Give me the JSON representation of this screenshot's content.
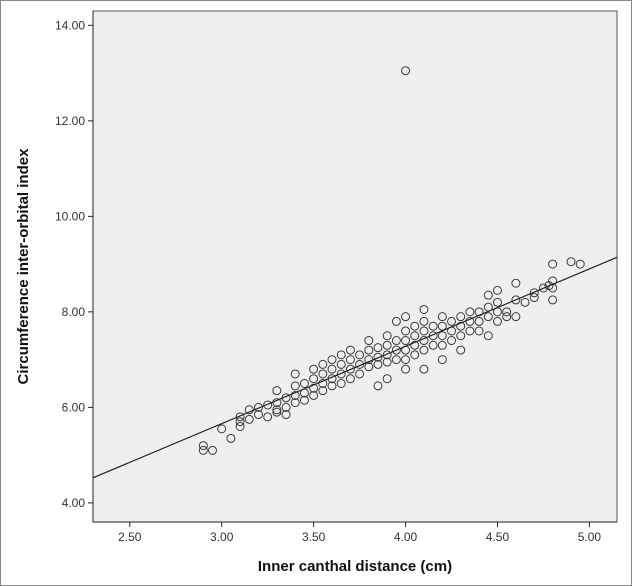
{
  "chart_data": {
    "type": "scatter",
    "xlabel": "Inner canthal distance (cm)",
    "ylabel": "Circumference inter-orbital index",
    "xlim": [
      2.3,
      5.15
    ],
    "ylim": [
      3.6,
      14.3
    ],
    "x_ticks": [
      "2.50",
      "3.00",
      "3.50",
      "4.00",
      "4.50",
      "5.00"
    ],
    "y_ticks": [
      "4.00",
      "6.00",
      "8.00",
      "10.00",
      "12.00",
      "14.00"
    ],
    "grid": false,
    "plot_background": "#efefef",
    "marker_color": "#3a3a3a",
    "line_color": "#222222",
    "fit_line": {
      "slope": 1.62,
      "intercept": 0.8
    },
    "points": [
      [
        2.9,
        5.2
      ],
      [
        2.9,
        5.1
      ],
      [
        2.95,
        5.1
      ],
      [
        3.0,
        5.55
      ],
      [
        3.05,
        5.35
      ],
      [
        3.1,
        5.6
      ],
      [
        3.1,
        5.7
      ],
      [
        3.1,
        5.8
      ],
      [
        3.15,
        5.95
      ],
      [
        3.15,
        5.75
      ],
      [
        3.2,
        5.85
      ],
      [
        3.2,
        6.0
      ],
      [
        3.25,
        5.8
      ],
      [
        3.25,
        6.05
      ],
      [
        3.3,
        5.9
      ],
      [
        3.3,
        6.1
      ],
      [
        3.3,
        6.35
      ],
      [
        3.3,
        5.95
      ],
      [
        3.35,
        6.0
      ],
      [
        3.35,
        6.2
      ],
      [
        3.35,
        5.85
      ],
      [
        3.4,
        6.25
      ],
      [
        3.4,
        6.45
      ],
      [
        3.4,
        6.1
      ],
      [
        3.4,
        6.7
      ],
      [
        3.45,
        6.3
      ],
      [
        3.45,
        6.5
      ],
      [
        3.45,
        6.15
      ],
      [
        3.5,
        6.4
      ],
      [
        3.5,
        6.6
      ],
      [
        3.5,
        6.8
      ],
      [
        3.5,
        6.25
      ],
      [
        3.55,
        6.5
      ],
      [
        3.55,
        6.7
      ],
      [
        3.55,
        6.35
      ],
      [
        3.55,
        6.9
      ],
      [
        3.6,
        6.6
      ],
      [
        3.6,
        6.8
      ],
      [
        3.6,
        6.45
      ],
      [
        3.6,
        7.0
      ],
      [
        3.65,
        6.7
      ],
      [
        3.65,
        6.5
      ],
      [
        3.65,
        6.9
      ],
      [
        3.65,
        7.1
      ],
      [
        3.7,
        6.8
      ],
      [
        3.7,
        7.0
      ],
      [
        3.7,
        6.6
      ],
      [
        3.7,
        7.2
      ],
      [
        3.75,
        6.9
      ],
      [
        3.75,
        7.1
      ],
      [
        3.75,
        6.7
      ],
      [
        3.8,
        7.0
      ],
      [
        3.8,
        7.2
      ],
      [
        3.8,
        6.85
      ],
      [
        3.8,
        7.4
      ],
      [
        3.85,
        7.05
      ],
      [
        3.85,
        7.25
      ],
      [
        3.85,
        6.9
      ],
      [
        3.85,
        6.45
      ],
      [
        3.9,
        7.1
      ],
      [
        3.9,
        7.3
      ],
      [
        3.9,
        6.95
      ],
      [
        3.9,
        7.5
      ],
      [
        3.9,
        6.6
      ],
      [
        3.95,
        7.2
      ],
      [
        3.95,
        7.4
      ],
      [
        3.95,
        7.0
      ],
      [
        3.95,
        7.8
      ],
      [
        4.0,
        7.2
      ],
      [
        4.0,
        7.4
      ],
      [
        4.0,
        7.0
      ],
      [
        4.0,
        7.6
      ],
      [
        4.0,
        6.8
      ],
      [
        4.0,
        7.9
      ],
      [
        4.0,
        13.05
      ],
      [
        4.05,
        7.3
      ],
      [
        4.05,
        7.5
      ],
      [
        4.05,
        7.1
      ],
      [
        4.05,
        7.7
      ],
      [
        4.1,
        7.4
      ],
      [
        4.1,
        7.6
      ],
      [
        4.1,
        7.2
      ],
      [
        4.1,
        7.8
      ],
      [
        4.1,
        6.8
      ],
      [
        4.1,
        8.05
      ],
      [
        4.15,
        7.5
      ],
      [
        4.15,
        7.3
      ],
      [
        4.15,
        7.7
      ],
      [
        4.2,
        7.5
      ],
      [
        4.2,
        7.7
      ],
      [
        4.2,
        7.3
      ],
      [
        4.2,
        7.9
      ],
      [
        4.2,
        7.0
      ],
      [
        4.25,
        7.6
      ],
      [
        4.25,
        7.4
      ],
      [
        4.25,
        7.8
      ],
      [
        4.3,
        7.7
      ],
      [
        4.3,
        7.5
      ],
      [
        4.3,
        7.9
      ],
      [
        4.3,
        7.2
      ],
      [
        4.35,
        7.8
      ],
      [
        4.35,
        7.6
      ],
      [
        4.35,
        8.0
      ],
      [
        4.4,
        7.8
      ],
      [
        4.4,
        8.0
      ],
      [
        4.4,
        7.6
      ],
      [
        4.45,
        7.9
      ],
      [
        4.45,
        8.1
      ],
      [
        4.45,
        7.5
      ],
      [
        4.45,
        8.35
      ],
      [
        4.5,
        8.0
      ],
      [
        4.5,
        8.2
      ],
      [
        4.5,
        7.8
      ],
      [
        4.5,
        8.45
      ],
      [
        4.55,
        8.0
      ],
      [
        4.55,
        7.9
      ],
      [
        4.6,
        8.25
      ],
      [
        4.6,
        7.9
      ],
      [
        4.6,
        8.6
      ],
      [
        4.65,
        8.2
      ],
      [
        4.7,
        8.4
      ],
      [
        4.7,
        8.3
      ],
      [
        4.75,
        8.5
      ],
      [
        4.78,
        8.55
      ],
      [
        4.8,
        8.5
      ],
      [
        4.8,
        8.25
      ],
      [
        4.8,
        8.65
      ],
      [
        4.8,
        9.0
      ],
      [
        4.9,
        9.05
      ],
      [
        4.95,
        9.0
      ]
    ]
  }
}
